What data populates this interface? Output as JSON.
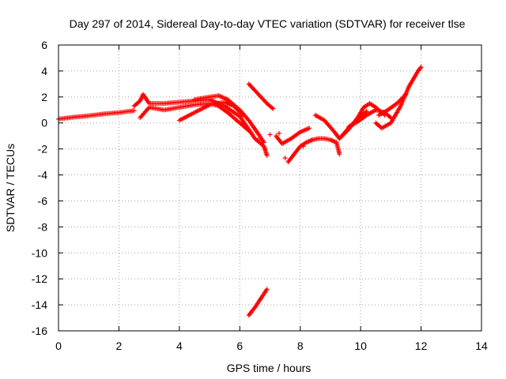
{
  "chart_data": {
    "type": "scatter",
    "title": "Day 297 of 2014, Sidereal Day-to-day VTEC variation (SDTVAR) for receiver tlse",
    "xlabel": "GPS time / hours",
    "ylabel": "SDTVAR / TECUs",
    "xlim": [
      0,
      14
    ],
    "ylim": [
      -16,
      6
    ],
    "x_ticks": [
      0,
      2,
      4,
      6,
      8,
      10,
      12,
      14
    ],
    "y_ticks": [
      -16,
      -14,
      -12,
      -10,
      -8,
      -6,
      -4,
      -2,
      0,
      2,
      4,
      6
    ],
    "grid": true,
    "marker": "+",
    "series_color": "#ff0000",
    "segments": [
      {
        "name": "arc-1",
        "x": [
          0.0,
          0.5,
          1.0,
          1.5,
          2.0,
          2.5
        ],
        "y": [
          0.3,
          0.45,
          0.55,
          0.7,
          0.8,
          0.95
        ]
      },
      {
        "name": "arc-2",
        "x": [
          2.5,
          2.7,
          2.8,
          3.0,
          3.5,
          4.0,
          4.5,
          5.0,
          5.5,
          6.0,
          6.3,
          6.5,
          6.8,
          6.9
        ],
        "y": [
          1.3,
          1.7,
          2.2,
          1.5,
          1.5,
          1.6,
          1.7,
          1.8,
          1.3,
          0.5,
          -0.5,
          -1.2,
          -1.8,
          -2.5
        ]
      },
      {
        "name": "arc-3",
        "x": [
          2.7,
          3.0,
          3.5,
          4.0,
          4.5,
          5.0,
          5.3,
          5.6,
          6.0,
          6.3
        ],
        "y": [
          0.4,
          1.2,
          1.0,
          1.2,
          1.4,
          1.5,
          1.3,
          0.8,
          0.0,
          -0.6
        ]
      },
      {
        "name": "arc-4",
        "x": [
          4.0,
          4.5,
          5.0,
          5.5,
          5.8,
          6.1
        ],
        "y": [
          0.2,
          0.8,
          1.4,
          1.6,
          1.3,
          0.6
        ]
      },
      {
        "name": "arc-5",
        "x": [
          4.5,
          5.0,
          5.3,
          5.6,
          6.0,
          6.3,
          6.6,
          6.8
        ],
        "y": [
          1.8,
          2.0,
          2.1,
          1.8,
          1.0,
          0.2,
          -0.8,
          -1.5
        ]
      },
      {
        "name": "arc-6",
        "x": [
          6.3,
          6.5,
          6.7,
          6.9,
          7.1
        ],
        "y": [
          3.0,
          2.5,
          2.0,
          1.5,
          1.1
        ]
      },
      {
        "name": "arc-7",
        "x": [
          6.3,
          6.5,
          6.7,
          6.9
        ],
        "y": [
          -14.8,
          -14.2,
          -13.5,
          -12.8
        ]
      },
      {
        "name": "arc-8",
        "x": [
          7.6,
          7.8,
          8.0,
          8.2,
          8.4,
          8.6,
          8.8,
          9.0,
          9.2,
          9.3
        ],
        "y": [
          -3.0,
          -2.4,
          -1.8,
          -1.5,
          -1.3,
          -1.2,
          -1.2,
          -1.3,
          -1.5,
          -2.4
        ]
      },
      {
        "name": "arc-9",
        "x": [
          7.2,
          7.4,
          7.7,
          8.0,
          8.3
        ],
        "y": [
          -1.0,
          -1.6,
          -1.2,
          -0.7,
          -0.4
        ]
      },
      {
        "name": "arc-10",
        "x": [
          8.5,
          8.8,
          9.1,
          9.3,
          9.6,
          9.9,
          10.2
        ],
        "y": [
          0.6,
          0.2,
          -0.6,
          -1.2,
          -0.4,
          0.3,
          0.9
        ]
      },
      {
        "name": "arc-11",
        "x": [
          9.3,
          9.6,
          9.9,
          10.1,
          10.3,
          10.5,
          10.8
        ],
        "y": [
          -1.2,
          -0.5,
          0.4,
          1.2,
          1.5,
          1.2,
          0.6
        ]
      },
      {
        "name": "arc-12",
        "x": [
          9.6,
          9.9,
          10.2,
          10.5,
          10.8,
          11.0
        ],
        "y": [
          -0.3,
          0.1,
          0.6,
          1.0,
          0.8,
          0.4
        ]
      },
      {
        "name": "arc-13",
        "x": [
          10.5,
          10.7,
          11.0,
          11.3,
          11.6,
          11.9,
          12.0
        ],
        "y": [
          0.0,
          -0.4,
          0.0,
          1.2,
          2.8,
          4.0,
          4.3
        ]
      },
      {
        "name": "arc-14",
        "x": [
          10.6,
          10.9,
          11.2,
          11.5
        ],
        "y": [
          0.6,
          1.0,
          1.5,
          2.2
        ]
      },
      {
        "name": "isolated",
        "x": [
          6.6,
          7.0,
          7.3,
          7.5,
          8.1,
          8.4
        ],
        "y": [
          -1.3,
          -0.9,
          -0.8,
          -2.7,
          -1.8,
          -1.3
        ]
      }
    ]
  }
}
